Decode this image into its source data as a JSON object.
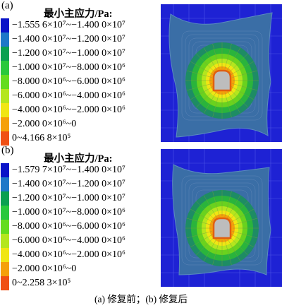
{
  "panels": [
    {
      "label": "(a)",
      "legend_title": "最小主应力/Pa:",
      "legend": [
        {
          "text": "−1.555 6×10⁷~−1.400 0×10⁷",
          "color": "#0a14c8"
        },
        {
          "text": "−1.400 0×10⁷~−1.200 0×10⁷",
          "color": "#1e78c8"
        },
        {
          "text": "−1.200 0×10⁷~−1.000 0×10⁷",
          "color": "#0aa050"
        },
        {
          "text": "−1.000 0×10⁷~−8.000 0×10⁶",
          "color": "#28c83c"
        },
        {
          "text": "−8.000 0×10⁶~−6.000 0×10⁶",
          "color": "#64dc1e"
        },
        {
          "text": "−6.000 0×10⁶~−4.000 0×10⁶",
          "color": "#b4e61e"
        },
        {
          "text": "−4.000 0×10⁶~−2.000 0×10⁶",
          "color": "#f0e614"
        },
        {
          "text": "−2.000 0×10⁶~0",
          "color": "#f5a00a"
        },
        {
          "text": "0~4.166 8×10⁵",
          "color": "#f05014"
        }
      ]
    },
    {
      "label": "(b)",
      "legend_title": "最小主应力/Pa:",
      "legend": [
        {
          "text": "−1.579 7×10⁷~−1.400 0×10⁷",
          "color": "#0a14c8"
        },
        {
          "text": "−1.400 0×10⁷~−1.200 0×10⁷",
          "color": "#1e78c8"
        },
        {
          "text": "−1.200 0×10⁷~−1.000 0×10⁷",
          "color": "#0aa050"
        },
        {
          "text": "−1.000 0×10⁷~−8.000 0×10⁶",
          "color": "#28c83c"
        },
        {
          "text": "−8.000 0×10⁶~−6.000 0×10⁶",
          "color": "#64dc1e"
        },
        {
          "text": "−6.000 0×10⁶~−4.000 0×10⁶",
          "color": "#b4e61e"
        },
        {
          "text": "−4.000 0×10⁶~−2.000 0×10⁶",
          "color": "#f0e614"
        },
        {
          "text": "−2.000 0×10⁶~0",
          "color": "#f5a00a"
        },
        {
          "text": "0~2.258 3×10⁵",
          "color": "#f05014"
        }
      ]
    }
  ],
  "caption": "(a)  修复前；(b)  修复后"
}
